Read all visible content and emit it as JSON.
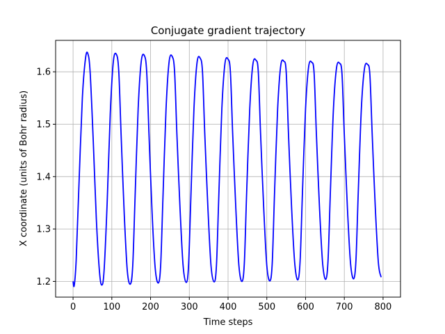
{
  "chart_data": {
    "type": "line",
    "title": "Conjugate gradient trajectory",
    "xlabel": "Time steps",
    "ylabel": "X coordinate (units of Bohr radius)",
    "xlim": [
      -45,
      845
    ],
    "ylim": [
      1.17,
      1.66
    ],
    "xticks": [
      0,
      100,
      200,
      300,
      400,
      500,
      600,
      700,
      800
    ],
    "yticks": [
      1.2,
      1.3,
      1.4,
      1.5,
      1.6
    ],
    "ytick_labels": [
      "1.2",
      "1.3",
      "1.4",
      "1.5",
      "1.6"
    ],
    "grid": true,
    "series": [
      {
        "color": "#0000ff",
        "x": [
          0,
          3,
          8,
          15,
          24,
          32,
          38,
          44,
          52,
          60,
          68,
          74,
          80,
          88,
          96,
          104,
          112,
          118,
          124,
          132,
          140,
          148,
          154,
          160,
          168,
          176,
          184,
          190,
          196,
          204,
          212,
          220,
          226,
          232,
          240,
          248,
          256,
          262,
          268,
          276,
          284,
          292,
          298,
          304,
          312,
          320,
          328,
          334,
          340,
          348,
          356,
          364,
          370,
          376,
          384,
          392,
          400,
          406,
          412,
          420,
          428,
          436,
          442,
          448,
          456,
          464,
          472,
          478,
          484,
          492,
          500,
          508,
          514,
          520,
          528,
          536,
          544,
          550,
          556,
          564,
          572,
          580,
          586,
          592,
          600,
          608,
          616,
          622,
          628,
          636,
          644,
          652,
          658,
          664,
          672,
          680,
          688,
          694,
          700,
          708,
          716,
          724,
          730,
          736,
          744,
          752,
          760,
          766,
          772,
          780,
          788,
          795
        ],
        "y": [
          1.2,
          1.192,
          1.24,
          1.38,
          1.55,
          1.625,
          1.635,
          1.6,
          1.47,
          1.32,
          1.22,
          1.193,
          1.22,
          1.35,
          1.52,
          1.62,
          1.633,
          1.6,
          1.48,
          1.33,
          1.22,
          1.195,
          1.23,
          1.36,
          1.53,
          1.62,
          1.631,
          1.6,
          1.48,
          1.33,
          1.225,
          1.197,
          1.23,
          1.36,
          1.53,
          1.62,
          1.629,
          1.6,
          1.48,
          1.34,
          1.23,
          1.198,
          1.23,
          1.36,
          1.53,
          1.618,
          1.626,
          1.6,
          1.48,
          1.34,
          1.23,
          1.199,
          1.23,
          1.36,
          1.53,
          1.616,
          1.624,
          1.6,
          1.48,
          1.34,
          1.23,
          1.2,
          1.235,
          1.37,
          1.53,
          1.614,
          1.622,
          1.6,
          1.48,
          1.34,
          1.23,
          1.201,
          1.235,
          1.37,
          1.53,
          1.612,
          1.62,
          1.6,
          1.48,
          1.34,
          1.235,
          1.203,
          1.24,
          1.37,
          1.53,
          1.61,
          1.618,
          1.598,
          1.48,
          1.34,
          1.235,
          1.204,
          1.24,
          1.37,
          1.53,
          1.608,
          1.616,
          1.596,
          1.48,
          1.34,
          1.235,
          1.205,
          1.24,
          1.37,
          1.53,
          1.606,
          1.614,
          1.594,
          1.48,
          1.34,
          1.235,
          1.208
        ]
      }
    ]
  }
}
